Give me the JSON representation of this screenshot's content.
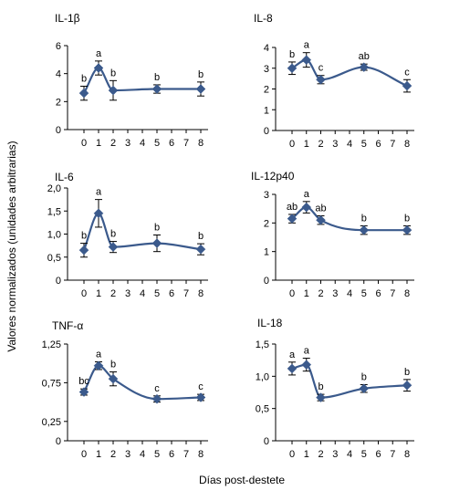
{
  "figure": {
    "ylabel": "Valores normalizados (unidades arbitrarias)",
    "xlabel": "Días post-destete",
    "colors": {
      "series": "#3B5A8C",
      "axis": "#000000",
      "text": "#000000"
    }
  },
  "chart_data": [
    {
      "type": "line",
      "title": "IL-1β",
      "x_ticks": [
        0,
        1,
        2,
        3,
        4,
        5,
        6,
        7,
        8
      ],
      "ylim": [
        0,
        6
      ],
      "y_ticks": [
        "0",
        "2",
        "4",
        "6"
      ],
      "y_tick_values": [
        0,
        2,
        4,
        6
      ],
      "x": [
        0,
        1,
        2,
        5,
        8
      ],
      "values": [
        2.6,
        4.4,
        2.8,
        2.9,
        2.9
      ],
      "errors": [
        0.5,
        0.5,
        0.7,
        0.3,
        0.5
      ],
      "letters": [
        "b",
        "a",
        "b",
        "b",
        "b"
      ]
    },
    {
      "type": "line",
      "title": "IL-8",
      "x_ticks": [
        0,
        1,
        2,
        3,
        4,
        5,
        6,
        7,
        8
      ],
      "ylim": [
        0,
        4
      ],
      "y_ticks": [
        "0",
        "1",
        "2",
        "3",
        "4"
      ],
      "y_tick_values": [
        0,
        1,
        2,
        3,
        4
      ],
      "x": [
        0,
        1,
        2,
        5,
        8
      ],
      "values": [
        3.0,
        3.4,
        2.45,
        3.05,
        2.15
      ],
      "errors": [
        0.3,
        0.35,
        0.2,
        0.15,
        0.3
      ],
      "letters": [
        "b",
        "a",
        "c",
        "ab",
        "c"
      ]
    },
    {
      "type": "line",
      "title": "IL-6",
      "x_ticks": [
        0,
        1,
        2,
        3,
        4,
        5,
        6,
        7,
        8
      ],
      "ylim": [
        0,
        2
      ],
      "y_ticks": [
        "0",
        "0,5",
        "1,0",
        "1,5",
        "2,0"
      ],
      "y_tick_values": [
        0,
        0.5,
        1.0,
        1.5,
        2.0
      ],
      "x": [
        0,
        1,
        2,
        5,
        8
      ],
      "values": [
        0.65,
        1.45,
        0.72,
        0.8,
        0.67
      ],
      "errors": [
        0.15,
        0.3,
        0.12,
        0.18,
        0.12
      ],
      "letters": [
        "b",
        "a",
        "b",
        "b",
        "b"
      ]
    },
    {
      "type": "line",
      "title": "IL-12p40",
      "x_ticks": [
        0,
        1,
        2,
        3,
        4,
        5,
        6,
        7,
        8
      ],
      "ylim": [
        0,
        3
      ],
      "y_ticks": [
        "0",
        "1",
        "2",
        "3"
      ],
      "y_tick_values": [
        0,
        1,
        2,
        3
      ],
      "x": [
        0,
        1,
        2,
        5,
        8
      ],
      "values": [
        2.15,
        2.55,
        2.1,
        1.75,
        1.75
      ],
      "errors": [
        0.15,
        0.2,
        0.15,
        0.15,
        0.15
      ],
      "letters": [
        "ab",
        "a",
        "ab",
        "b",
        "b"
      ]
    },
    {
      "type": "line",
      "title": "TNF-α",
      "x_ticks": [
        0,
        1,
        2,
        3,
        4,
        5,
        6,
        7,
        8
      ],
      "ylim": [
        0,
        1.25
      ],
      "y_ticks": [
        "0",
        "0,25",
        "0,75",
        "1,25"
      ],
      "y_tick_values": [
        0,
        0.25,
        0.75,
        1.25
      ],
      "x": [
        0,
        1,
        2,
        5,
        8
      ],
      "values": [
        0.63,
        0.97,
        0.8,
        0.54,
        0.56
      ],
      "errors": [
        0.04,
        0.05,
        0.09,
        0.04,
        0.04
      ],
      "letters": [
        "bc",
        "a",
        "b",
        "c",
        "c"
      ]
    },
    {
      "type": "line",
      "title": "IL-18",
      "x_ticks": [
        0,
        1,
        2,
        3,
        4,
        5,
        6,
        7,
        8
      ],
      "ylim": [
        0,
        1.5
      ],
      "y_ticks": [
        "0",
        "0,5",
        "1,0",
        "1,5"
      ],
      "y_tick_values": [
        0,
        0.5,
        1.0,
        1.5
      ],
      "x": [
        0,
        1,
        2,
        5,
        8
      ],
      "values": [
        1.12,
        1.18,
        0.67,
        0.81,
        0.86
      ],
      "errors": [
        0.1,
        0.1,
        0.05,
        0.06,
        0.09
      ],
      "letters": [
        "a",
        "a",
        "b",
        "b",
        "b"
      ]
    }
  ]
}
